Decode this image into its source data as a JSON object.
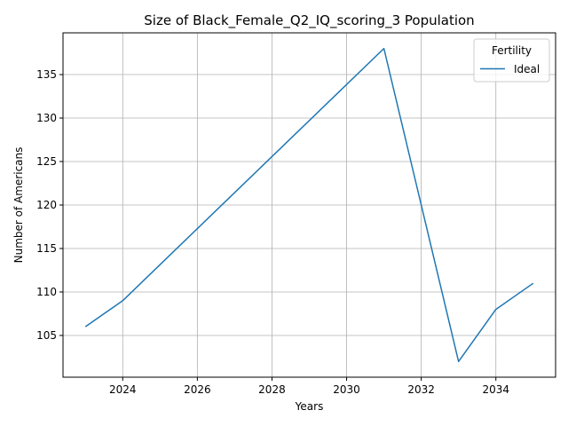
{
  "chart_data": {
    "type": "line",
    "title": "Size of Black_Female_Q2_IQ_scoring_3 Population",
    "xlabel": "Years",
    "ylabel": "Number of Americans",
    "xlim": [
      2022.4,
      2035.6
    ],
    "ylim": [
      100.2,
      139.8
    ],
    "xticks": [
      2024,
      2026,
      2028,
      2030,
      2032,
      2034
    ],
    "yticks": [
      105,
      110,
      115,
      120,
      125,
      130,
      135
    ],
    "grid": true,
    "legend": {
      "title": "Fertility",
      "placement": "top-right"
    },
    "series": [
      {
        "name": "Ideal",
        "color": "#1f77b4",
        "x": [
          2023,
          2024,
          2031,
          2032,
          2033,
          2034,
          2035
        ],
        "y": [
          106,
          109,
          138,
          120,
          102,
          108,
          111
        ]
      }
    ]
  }
}
